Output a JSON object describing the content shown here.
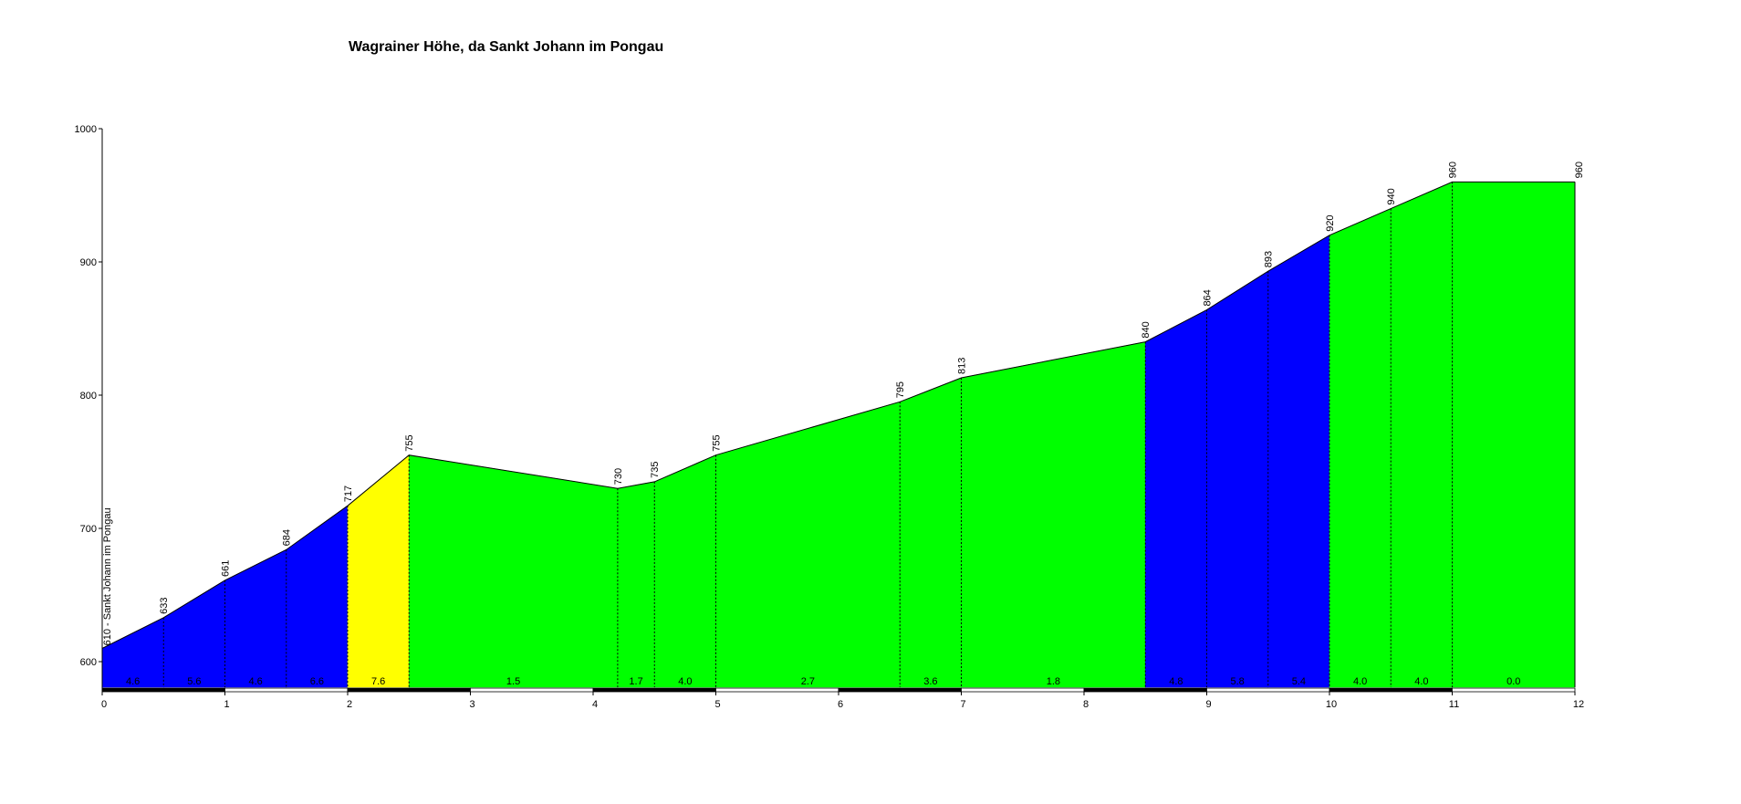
{
  "chart_data": {
    "type": "area",
    "title": "Wagrainer Höhe, da Sankt Johann im Pongau",
    "start_label": "610 - Sankt Johann im Pongau",
    "xlim": [
      0,
      12
    ],
    "ylim": [
      580,
      1000
    ],
    "x_ticks": [
      "0",
      "1",
      "2",
      "3",
      "4",
      "5",
      "6",
      "7",
      "8",
      "9",
      "10",
      "11",
      "12"
    ],
    "y_ticks": [
      "600",
      "700",
      "800",
      "900",
      "1000"
    ],
    "grid": false,
    "profile": [
      {
        "x": 0,
        "y": 610,
        "label": ""
      },
      {
        "x": 0.5,
        "y": 633,
        "label": "633"
      },
      {
        "x": 1,
        "y": 661,
        "label": "661"
      },
      {
        "x": 1.5,
        "y": 684,
        "label": "684"
      },
      {
        "x": 2,
        "y": 717,
        "label": "717"
      },
      {
        "x": 2.5,
        "y": 755,
        "label": "755"
      },
      {
        "x": 4.2,
        "y": 730,
        "label": "730"
      },
      {
        "x": 4.5,
        "y": 735,
        "label": "735"
      },
      {
        "x": 5,
        "y": 755,
        "label": "755"
      },
      {
        "x": 6.5,
        "y": 795,
        "label": "795"
      },
      {
        "x": 7,
        "y": 813,
        "label": "813"
      },
      {
        "x": 8.5,
        "y": 840,
        "label": "840"
      },
      {
        "x": 9,
        "y": 864,
        "label": "864"
      },
      {
        "x": 9.5,
        "y": 893,
        "label": "893"
      },
      {
        "x": 10,
        "y": 920,
        "label": "920"
      },
      {
        "x": 10.5,
        "y": 940,
        "label": "940"
      },
      {
        "x": 11,
        "y": 960,
        "label": "960"
      },
      {
        "x": 12,
        "y": 960,
        "label": "960"
      }
    ],
    "segments": [
      {
        "from": 0,
        "to": 0.5,
        "grade": "4.6",
        "color": "#0000ff"
      },
      {
        "from": 0.5,
        "to": 1,
        "grade": "5.6",
        "color": "#0000ff"
      },
      {
        "from": 1,
        "to": 1.5,
        "grade": "4.6",
        "color": "#0000ff"
      },
      {
        "from": 1.5,
        "to": 2,
        "grade": "6.6",
        "color": "#0000ff"
      },
      {
        "from": 2,
        "to": 2.5,
        "grade": "7.6",
        "color": "#ffff00"
      },
      {
        "from": 2.5,
        "to": 4.2,
        "grade": "1.5",
        "color": "#00ff00"
      },
      {
        "from": 4.2,
        "to": 4.5,
        "grade": "1.7",
        "color": "#00ff00"
      },
      {
        "from": 4.5,
        "to": 5,
        "grade": "4.0",
        "color": "#00ff00"
      },
      {
        "from": 5,
        "to": 6.5,
        "grade": "2.7",
        "color": "#00ff00"
      },
      {
        "from": 6.5,
        "to": 7,
        "grade": "3.6",
        "color": "#00ff00"
      },
      {
        "from": 7,
        "to": 8.5,
        "grade": "1.8",
        "color": "#00ff00"
      },
      {
        "from": 8.5,
        "to": 9,
        "grade": "4.8",
        "color": "#0000ff"
      },
      {
        "from": 9,
        "to": 9.5,
        "grade": "5.8",
        "color": "#0000ff"
      },
      {
        "from": 9.5,
        "to": 10,
        "grade": "5.4",
        "color": "#0000ff"
      },
      {
        "from": 10,
        "to": 10.5,
        "grade": "4.0",
        "color": "#00ff00"
      },
      {
        "from": 10.5,
        "to": 11,
        "grade": "4.0",
        "color": "#00ff00"
      },
      {
        "from": 11,
        "to": 12,
        "grade": "0.0",
        "color": "#00ff00"
      }
    ]
  }
}
